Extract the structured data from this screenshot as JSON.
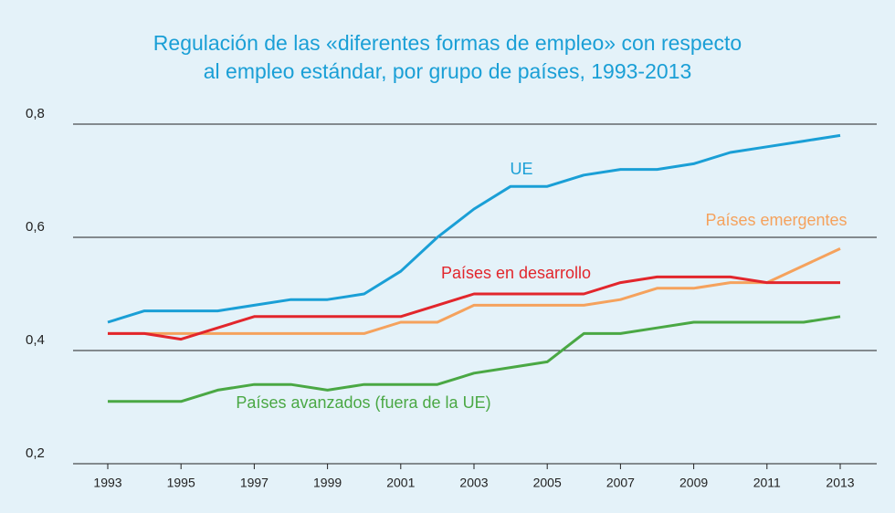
{
  "chart_data": {
    "type": "line",
    "title": [
      "Regulación de las «diferentes formas de empleo» con respecto",
      "al empleo estándar, por grupo de países, 1993-2013"
    ],
    "x": [
      1993,
      1994,
      1995,
      1996,
      1997,
      1998,
      1999,
      2000,
      2001,
      2002,
      2003,
      2004,
      2005,
      2006,
      2007,
      2008,
      2009,
      2010,
      2011,
      2012,
      2013
    ],
    "xlim": [
      1993,
      2013
    ],
    "xticks": [
      1993,
      1995,
      1997,
      1999,
      2001,
      2003,
      2005,
      2007,
      2009,
      2011,
      2013
    ],
    "ylim": [
      0.2,
      0.8
    ],
    "yticks": [
      {
        "value": 0.2,
        "label": "0,2"
      },
      {
        "value": 0.4,
        "label": "0,4"
      },
      {
        "value": 0.6,
        "label": "0,6"
      },
      {
        "value": 0.8,
        "label": "0,8"
      }
    ],
    "grid": true,
    "series": [
      {
        "name": "UE",
        "color": "#1a9fd6",
        "values": [
          0.45,
          0.47,
          0.47,
          0.47,
          0.48,
          0.49,
          0.49,
          0.5,
          0.54,
          0.6,
          0.65,
          0.69,
          0.69,
          0.71,
          0.72,
          0.72,
          0.73,
          0.75,
          0.76,
          0.77,
          0.78
        ]
      },
      {
        "name": "Países emergentes",
        "color": "#f5a25d",
        "values": [
          0.43,
          0.43,
          0.43,
          0.43,
          0.43,
          0.43,
          0.43,
          0.43,
          0.45,
          0.45,
          0.48,
          0.48,
          0.48,
          0.48,
          0.49,
          0.51,
          0.51,
          0.52,
          0.52,
          0.55,
          0.58
        ]
      },
      {
        "name": "Países en desarrollo",
        "color": "#e2262c",
        "values": [
          0.43,
          0.43,
          0.42,
          0.44,
          0.46,
          0.46,
          0.46,
          0.46,
          0.46,
          0.48,
          0.5,
          0.5,
          0.5,
          0.5,
          0.52,
          0.53,
          0.53,
          0.53,
          0.52,
          0.52,
          0.52
        ]
      },
      {
        "name": "Países avanzados (fuera de la UE)",
        "color": "#4aa844",
        "values": [
          0.31,
          0.31,
          0.31,
          0.33,
          0.34,
          0.34,
          0.33,
          0.34,
          0.34,
          0.34,
          0.36,
          0.37,
          0.38,
          0.43,
          0.43,
          0.44,
          0.45,
          0.45,
          0.45,
          0.45,
          0.46
        ]
      }
    ]
  }
}
